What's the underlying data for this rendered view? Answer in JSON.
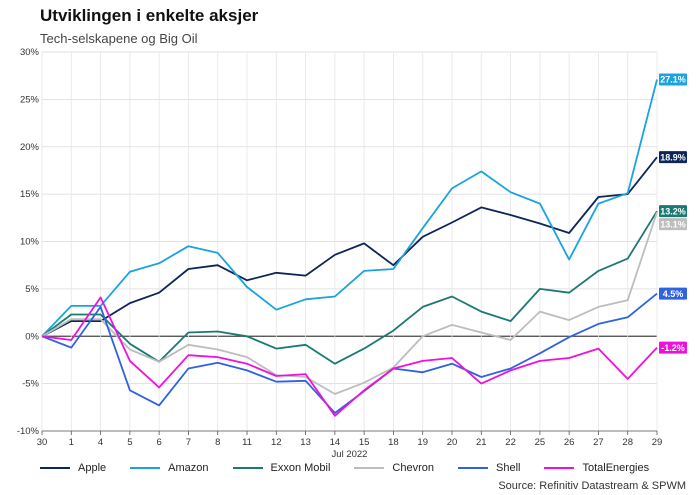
{
  "title": "Utviklingen i enkelte aksjer",
  "subtitle": "Tech-selskapene og Big Oil",
  "source": "Source: Refinitiv Datastream & SPWM",
  "chart_data": {
    "type": "line",
    "xlabel": "",
    "ylabel": "",
    "month_label": "Jul 2022",
    "ylim": [
      -10,
      30
    ],
    "yticks": [
      -10,
      -5,
      0,
      5,
      10,
      15,
      20,
      25,
      30
    ],
    "ytick_labels": [
      "-10%",
      "-5%",
      "0%",
      "5%",
      "10%",
      "15%",
      "20%",
      "25%",
      "30%"
    ],
    "x": [
      "30",
      "1",
      "4",
      "5",
      "6",
      "7",
      "8",
      "11",
      "12",
      "13",
      "14",
      "15",
      "18",
      "19",
      "20",
      "21",
      "22",
      "25",
      "26",
      "27",
      "28",
      "29"
    ],
    "grid": true,
    "legend_position": "bottom",
    "series": [
      {
        "name": "Apple",
        "color": "#0d2559",
        "end_label": "18.9%",
        "values": [
          0,
          1.6,
          1.6,
          3.5,
          4.6,
          7.1,
          7.5,
          5.9,
          6.7,
          6.4,
          8.6,
          9.8,
          7.5,
          10.5,
          12.0,
          13.6,
          12.8,
          11.9,
          10.9,
          14.7,
          15.0,
          18.9
        ]
      },
      {
        "name": "Amazon",
        "color": "#1aa3e0",
        "end_label": "27.1%",
        "values": [
          0,
          3.2,
          3.2,
          6.8,
          7.7,
          9.5,
          8.8,
          5.2,
          2.8,
          3.9,
          4.2,
          6.9,
          7.1,
          11.4,
          15.6,
          17.4,
          15.2,
          14.0,
          8.1,
          14.0,
          15.1,
          27.1
        ]
      },
      {
        "name": "Exxon Mobil",
        "color": "#1a7a72",
        "end_label": "13.2%",
        "values": [
          0,
          2.3,
          2.3,
          -0.8,
          -2.7,
          0.4,
          0.5,
          0.0,
          -1.3,
          -0.9,
          -2.9,
          -1.3,
          0.6,
          3.1,
          4.2,
          2.6,
          1.6,
          5.0,
          4.6,
          6.9,
          8.2,
          13.2
        ]
      },
      {
        "name": "Chevron",
        "color": "#bdbdbd",
        "end_label": "13.1%",
        "values": [
          0,
          1.8,
          1.8,
          -1.4,
          -2.7,
          -0.9,
          -1.4,
          -2.2,
          -4.1,
          -4.3,
          -6.1,
          -4.9,
          -3.3,
          0.0,
          1.2,
          0.4,
          -0.4,
          2.6,
          1.7,
          3.1,
          3.8,
          13.1
        ]
      },
      {
        "name": "Shell",
        "color": "#2f62e0",
        "end_label": "4.5%",
        "values": [
          0,
          -1.2,
          3.1,
          -5.7,
          -7.3,
          -3.4,
          -2.8,
          -3.6,
          -4.8,
          -4.7,
          -8.1,
          -5.8,
          -3.4,
          -3.8,
          -2.9,
          -4.3,
          -3.4,
          -1.8,
          -0.1,
          1.3,
          2.0,
          4.5
        ]
      },
      {
        "name": "TotalEnergies",
        "color": "#ee11dd",
        "end_label": "-1.2%",
        "values": [
          0,
          -0.4,
          4.1,
          -2.6,
          -5.4,
          -2.0,
          -2.2,
          -2.9,
          -4.2,
          -4.0,
          -8.4,
          -5.7,
          -3.4,
          -2.6,
          -2.3,
          -5.0,
          -3.6,
          -2.6,
          -2.3,
          -1.3,
          -4.5,
          -1.2
        ]
      }
    ]
  }
}
